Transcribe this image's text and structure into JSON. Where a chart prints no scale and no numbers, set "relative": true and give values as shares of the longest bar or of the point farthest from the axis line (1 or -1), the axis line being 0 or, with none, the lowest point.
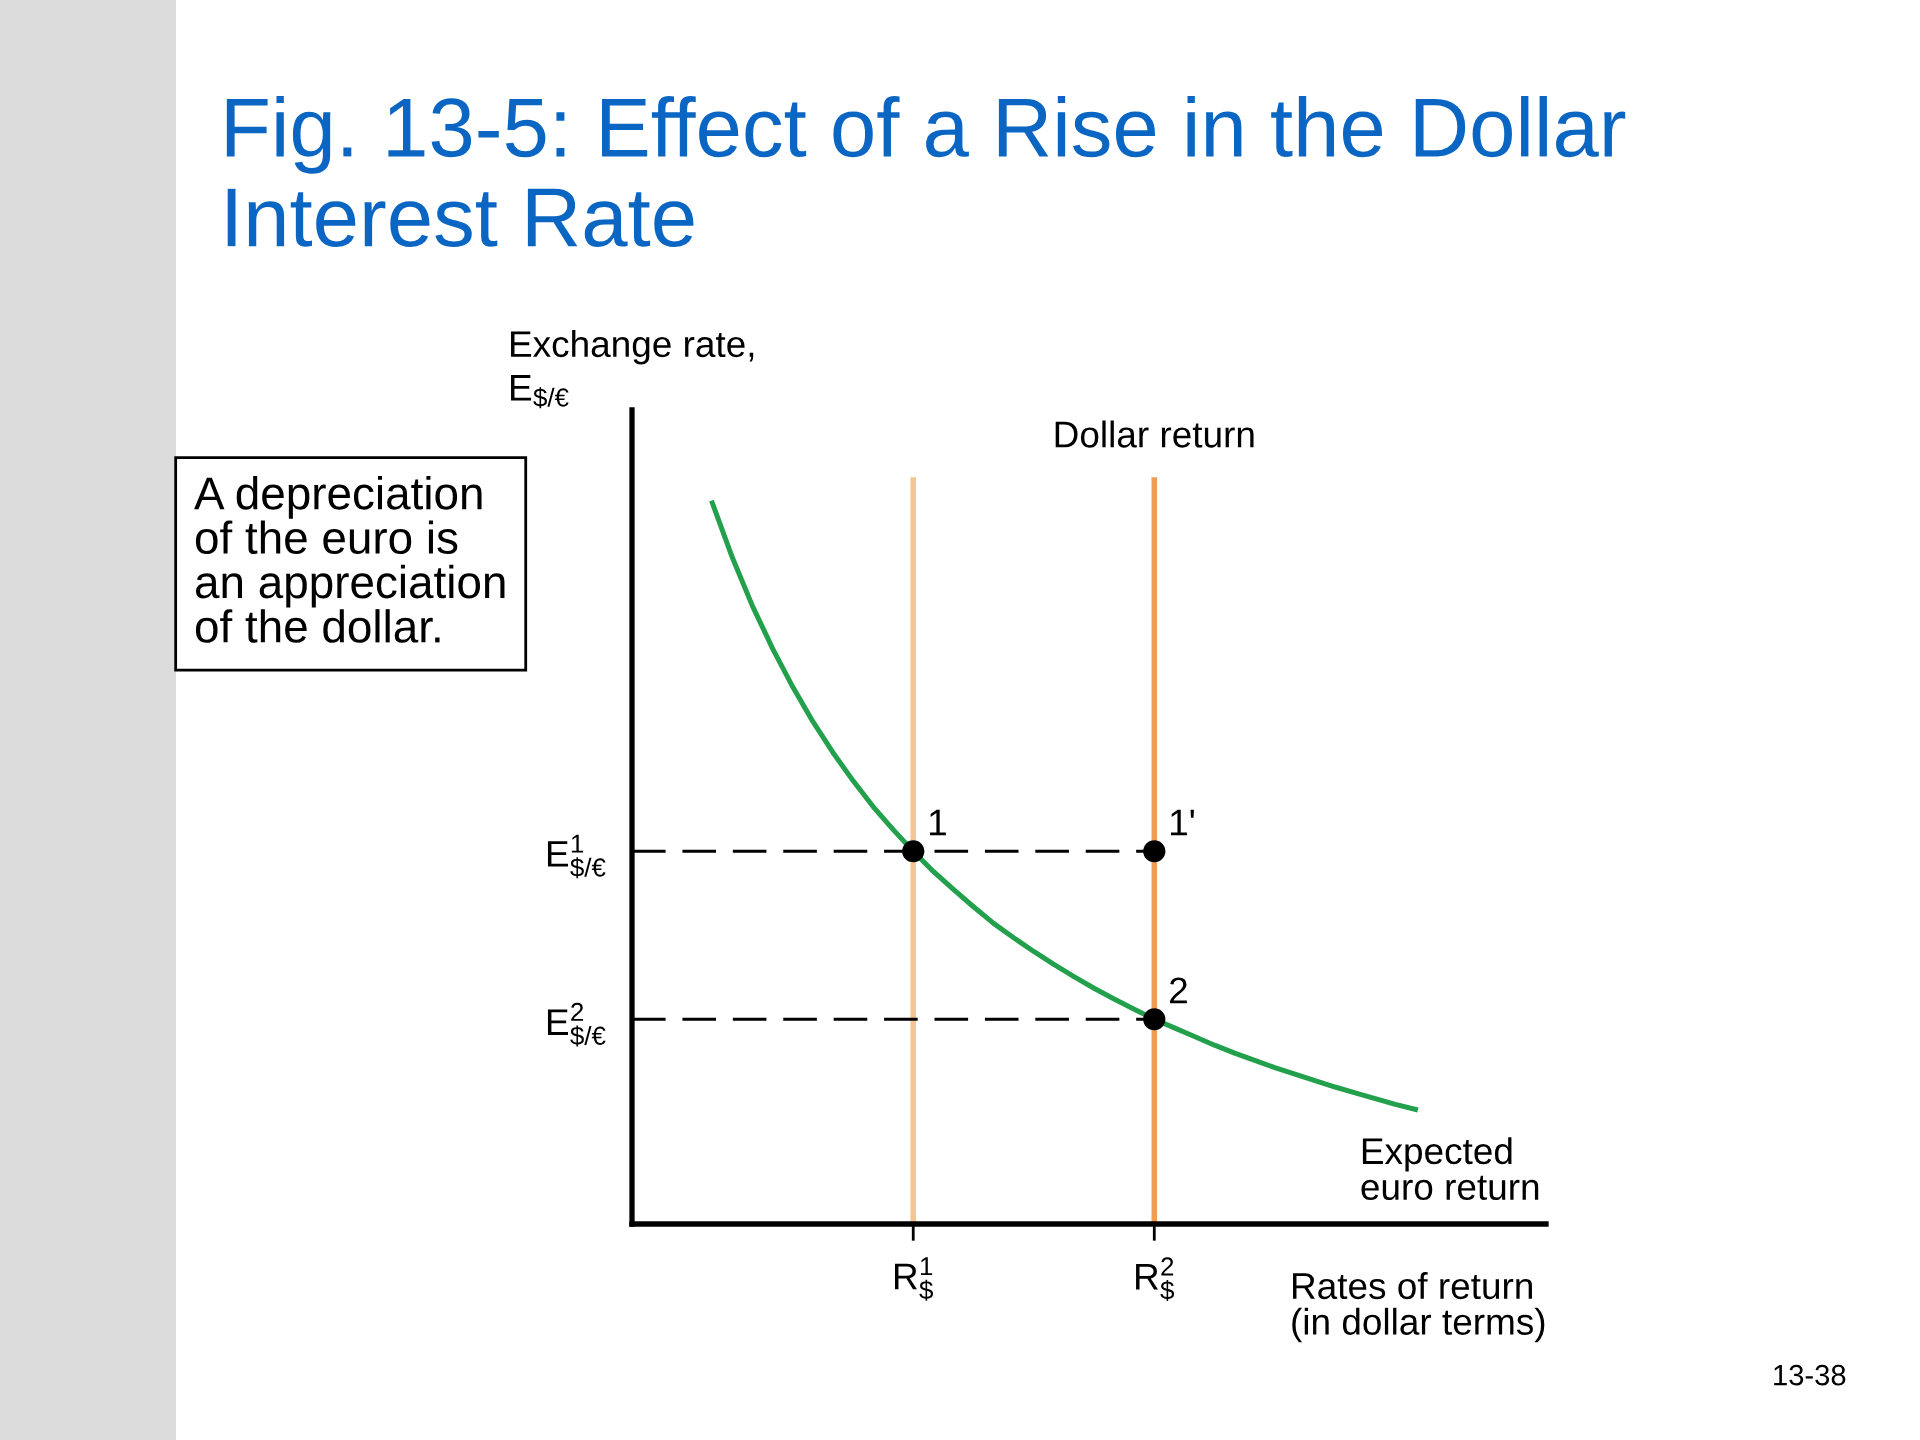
{
  "chart_data": {
    "type": "line",
    "title": "Fig. 13-5: Effect of a Rise in the Dollar Interest Rate",
    "xlabel": "Rates of return\n(in dollar terms)",
    "ylabel": "Exchange rate,\nE$_{$/€}$",
    "relative": true,
    "categories": [
      null,
      null,
      null,
      null,
      null,
      null,
      null,
      null,
      null,
      null,
      null,
      null,
      null,
      null,
      "R$^{1}$$_{$}$",
      null,
      null,
      null,
      null,
      null,
      null,
      null,
      null,
      null,
      null,
      null,
      "R$^{2}$$_{$}$",
      null,
      null,
      null,
      null,
      null,
      null,
      null,
      null,
      null,
      null,
      null,
      null,
      null,
      null,
      null,
      null,
      null,
      null,
      null
    ],
    "ref_lines": [
      {
        "axis": "x",
        "value": "R$^{1}$$_{$}$",
        "color": "#f7c594"
      },
      {
        "axis": "x",
        "value": "R$^{2}$$_{$}$",
        "color": "#ef9d55",
        "label": "Dollar return"
      }
    ],
    "series": [
      {
        "name": "Expected\neuro return",
        "color": "#22a04b",
        "values": [
          null,
          null,
          null,
          null,
          1.0,
          0.924,
          0.857,
          0.798,
          0.745,
          0.697,
          0.654,
          0.615,
          0.579,
          0.547,
          0.517,
          0.489,
          0.464,
          0.44,
          0.417,
          0.397,
          0.378,
          0.36,
          0.343,
          0.327,
          0.312,
          0.298,
          0.284,
          0.272,
          0.26,
          0.248,
          0.237,
          0.227,
          0.217,
          0.208,
          0.199,
          0.19,
          0.182,
          0.174,
          0.166,
          0.159,
          null,
          null,
          null,
          null,
          null,
          null
        ]
      },
      {
        "name": "E$^{1}$$_{$/€}$",
        "color": "#000000",
        "line_style": "dashed",
        "values": [
          0.517,
          0.517,
          0.517,
          0.517,
          0.517,
          0.517,
          0.517,
          0.517,
          0.517,
          0.517,
          0.517,
          0.517,
          0.517,
          0.517,
          0.517,
          0.517,
          0.517,
          0.517,
          0.517,
          0.517,
          0.517,
          0.517,
          0.517,
          0.517,
          0.517,
          0.517,
          0.517,
          null,
          null,
          null,
          null,
          null,
          null,
          null,
          null,
          null,
          null,
          null,
          null,
          null,
          null,
          null,
          null,
          null,
          null,
          null
        ]
      },
      {
        "name": "E$^{2}$$_{$/€}$",
        "color": "#000000",
        "line_style": "dashed",
        "values": [
          0.284,
          0.284,
          0.284,
          0.284,
          0.284,
          0.284,
          0.284,
          0.284,
          0.284,
          0.284,
          0.284,
          0.284,
          0.284,
          0.284,
          0.284,
          0.284,
          0.284,
          0.284,
          0.284,
          0.284,
          0.284,
          0.284,
          0.284,
          0.284,
          0.284,
          0.284,
          0.284,
          null,
          null,
          null,
          null,
          null,
          null,
          null,
          null,
          null,
          null,
          null,
          null,
          null,
          null,
          null,
          null,
          null,
          null,
          null
        ]
      },
      {
        "type": "scatter",
        "color": "#000000",
        "marker": "circle",
        "values": [
          null,
          null,
          null,
          null,
          null,
          null,
          null,
          null,
          null,
          null,
          null,
          null,
          null,
          null,
          0.517,
          null,
          null,
          null,
          null,
          null,
          null,
          null,
          null,
          null,
          null,
          null,
          0.517,
          null,
          null,
          null,
          null,
          null,
          null,
          null,
          null,
          null,
          null,
          null,
          null,
          null,
          null,
          null,
          null,
          null,
          null,
          null
        ]
      },
      {
        "type": "scatter",
        "color": "#000000",
        "marker": "circle",
        "values": [
          null,
          null,
          null,
          null,
          null,
          null,
          null,
          null,
          null,
          null,
          null,
          null,
          null,
          null,
          null,
          null,
          null,
          null,
          null,
          null,
          null,
          null,
          null,
          null,
          null,
          null,
          0.284,
          null,
          null,
          null,
          null,
          null,
          null,
          null,
          null,
          null,
          null,
          null,
          null,
          null,
          null,
          null,
          null,
          null,
          null,
          null
        ]
      }
    ],
    "annotations": [
      {
        "text": "1",
        "x": "R$^{1}$$_{$}$",
        "y": 0.517
      },
      {
        "text": "1'",
        "x": "R$^{2}$$_{$}$",
        "y": 0.517
      },
      {
        "text": "2",
        "x": "R$^{2}$$_{$}$",
        "y": 0.284
      },
      "A depreciation\nof the euro is\nan appreciation\nof the dollar.",
      "13-38"
    ]
  }
}
